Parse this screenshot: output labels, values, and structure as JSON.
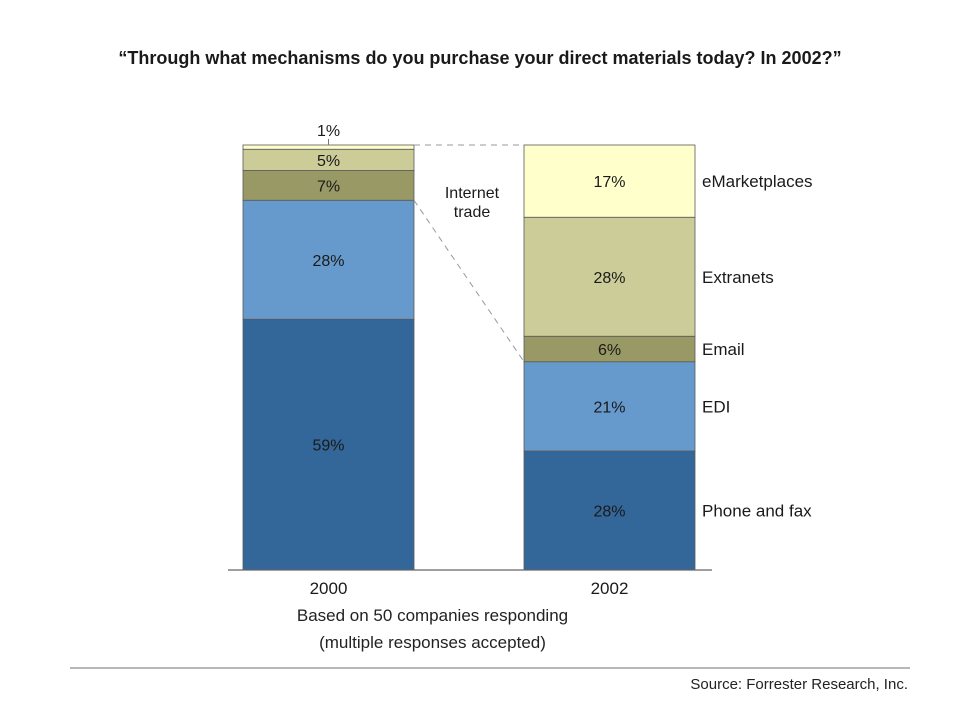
{
  "title": "“Through what mechanisms do you purchase your direct materials today? In 2002?”",
  "annotation": "Internet\ntrade",
  "footnote_line1": "Based on 50 companies responding",
  "footnote_line2": "(multiple responses accepted)",
  "source": "Source: Forrester Research, Inc.",
  "colors": {
    "phone_fax": "#336699",
    "edi": "#6699cc",
    "email": "#999966",
    "extranets": "#cccc99",
    "emarketplaces": "#ffffcc"
  },
  "chart_data": {
    "type": "bar",
    "stacked": true,
    "normalized": true,
    "categories": [
      "2000",
      "2002"
    ],
    "series": [
      {
        "name": "Phone and fax",
        "values": [
          59,
          28
        ],
        "labels": [
          "59%",
          "28%"
        ]
      },
      {
        "name": "EDI",
        "values": [
          28,
          21
        ],
        "labels": [
          "28%",
          "21%"
        ]
      },
      {
        "name": "Email",
        "values": [
          7,
          6
        ],
        "labels": [
          "7%",
          "6%"
        ]
      },
      {
        "name": "Extranets",
        "values": [
          5,
          28
        ],
        "labels": [
          "5%",
          "28%"
        ]
      },
      {
        "name": "eMarketplaces",
        "values": [
          1,
          17
        ],
        "labels": [
          "1%",
          "17%"
        ]
      }
    ],
    "legend_position": "right of 2002 bar",
    "grid": false
  }
}
